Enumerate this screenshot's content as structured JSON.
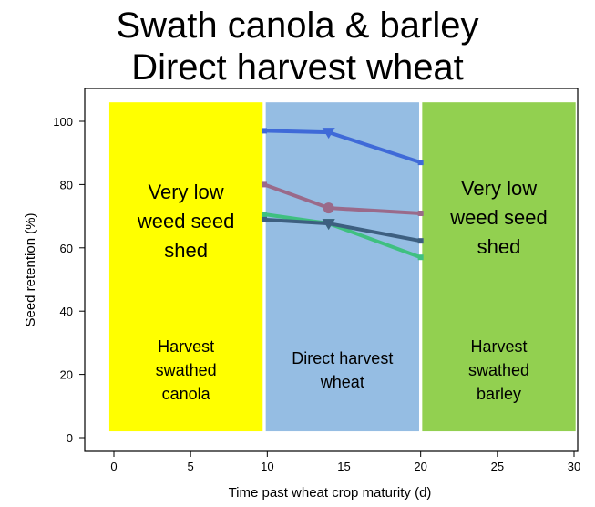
{
  "chart_data": {
    "type": "line",
    "title": [
      "Swath canola & barley",
      "Direct harvest wheat"
    ],
    "xlabel": "Time past wheat crop maturity (d)",
    "ylabel": "Seed retention (%)",
    "xlim": [
      -1.9,
      30.2
    ],
    "ylim": [
      -4.5,
      110
    ],
    "xticks": [
      0,
      5,
      10,
      15,
      20,
      25,
      30
    ],
    "yticks": [
      0,
      20,
      40,
      60,
      80,
      100
    ],
    "grid": false,
    "series": [
      {
        "color": "#3f6ad8",
        "marker": "triangle-down",
        "x": [
          9.8,
          14,
          20
        ],
        "y": [
          97,
          96.5,
          87
        ]
      },
      {
        "color": "#9a6a8a",
        "marker": "circle",
        "x": [
          9.8,
          14,
          20
        ],
        "y": [
          80,
          72.6,
          70.9
        ]
      },
      {
        "color": "#3fc080",
        "marker": "triangle-down",
        "x": [
          9.8,
          14,
          20
        ],
        "y": [
          70.6,
          67.7,
          57
        ]
      },
      {
        "color": "#3d5f80",
        "marker": "triangle-down",
        "x": [
          9.8,
          14,
          20
        ],
        "y": [
          68.9,
          67.7,
          62.2
        ]
      }
    ],
    "regions": [
      {
        "x0": -0.3,
        "x1": 9.7,
        "y0": 2,
        "y1": 106,
        "color": "#ffff00",
        "heading": [
          "Very low",
          "weed seed",
          "shed"
        ],
        "label": [
          "Harvest",
          "swathed",
          "canola"
        ]
      },
      {
        "x0": 9.9,
        "x1": 19.9,
        "y0": 2,
        "y1": 106,
        "color": "#95bde3",
        "heading": [],
        "label": [
          "Direct harvest",
          "wheat"
        ]
      },
      {
        "x0": 20.1,
        "x1": 30.1,
        "y0": 2,
        "y1": 106,
        "color": "#92d050",
        "heading": [
          "Very low",
          "weed seed",
          "shed"
        ],
        "label": [
          "Harvest",
          "swathed",
          "barley"
        ]
      }
    ]
  }
}
